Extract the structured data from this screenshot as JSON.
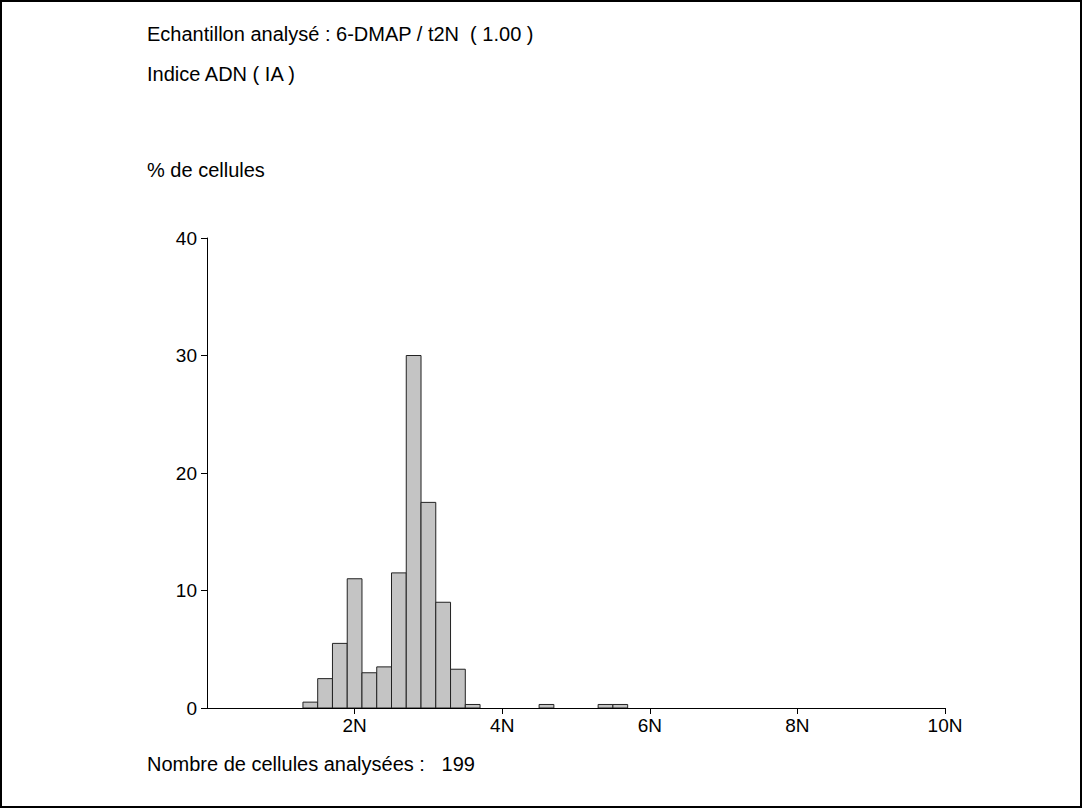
{
  "chart_data": {
    "type": "histogram",
    "title": "Echantillon analysé : 6-DMAP / t2N  ( 1.00 )",
    "subtitle": "Indice ADN ( IA )",
    "ylabel": "% de cellules",
    "footnote": "Nombre de cellules analysées :   199",
    "bins": [
      1.3,
      1.5,
      1.7,
      1.9,
      2.1,
      2.3,
      2.5,
      2.7,
      2.9,
      3.1,
      3.3,
      3.5,
      3.7,
      3.9,
      4.1,
      4.3,
      4.5,
      4.7,
      4.9,
      5.1,
      5.3,
      5.5,
      5.7
    ],
    "values": [
      0.5,
      2.5,
      5.5,
      11,
      3,
      3.5,
      11.5,
      30,
      17.5,
      9,
      3.3,
      0.3,
      0,
      0,
      0,
      0,
      0.3,
      0,
      0,
      0,
      0.3,
      0.3
    ],
    "color": "#c4c4c4",
    "xlim": [
      0,
      10
    ],
    "xticks": [
      {
        "value": 2,
        "label": "2N"
      },
      {
        "value": 4,
        "label": "4N"
      },
      {
        "value": 6,
        "label": "6N"
      },
      {
        "value": 8,
        "label": "8N"
      },
      {
        "value": 10,
        "label": "10N"
      }
    ],
    "ylim": [
      0,
      40
    ],
    "yticks": [
      0,
      10,
      20,
      30,
      40
    ],
    "grid": false
  }
}
